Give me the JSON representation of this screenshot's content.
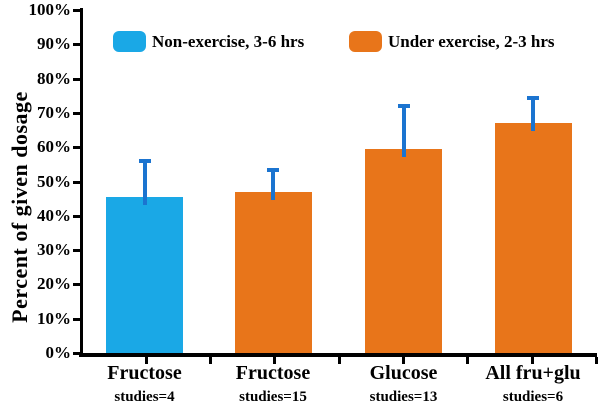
{
  "chart_data": {
    "type": "bar",
    "title": "",
    "ylabel": "Percent of given dosage",
    "xlabel": "",
    "ylim": [
      0,
      100
    ],
    "ytick_step": 10,
    "ytick_labels": [
      "0%",
      "10%",
      "20%",
      "30%",
      "40%",
      "50%",
      "60%",
      "70%",
      "80%",
      "90%",
      "100%"
    ],
    "grid": false,
    "legend_position": "top-inside",
    "legend": [
      {
        "label": "Non-exercise, 3-6 hrs",
        "color": "#1AA8E6"
      },
      {
        "label": "Under exercise, 2-3 hrs",
        "color": "#E8751A"
      }
    ],
    "categories": [
      "Fructose",
      "Fructose",
      "Glucose",
      "All fru+glu"
    ],
    "sublabels": [
      "studies=4",
      "studies=15",
      "studies=13",
      "studies=6"
    ],
    "series": [
      {
        "name": "Non-exercise, 3-6 hrs",
        "bars": [
          0
        ]
      },
      {
        "name": "Under exercise, 2-3 hrs",
        "bars": [
          1,
          2,
          3
        ]
      }
    ],
    "values": [
      45.5,
      47,
      59.5,
      67
    ],
    "errors_upper": [
      11,
      7,
      13,
      8
    ],
    "bar_colors": [
      "#1AA8E6",
      "#E8751A",
      "#E8751A",
      "#E8751A"
    ],
    "error_bar_color": "#1B74D0",
    "axis_color": "#000000",
    "text_color": "#000000"
  }
}
